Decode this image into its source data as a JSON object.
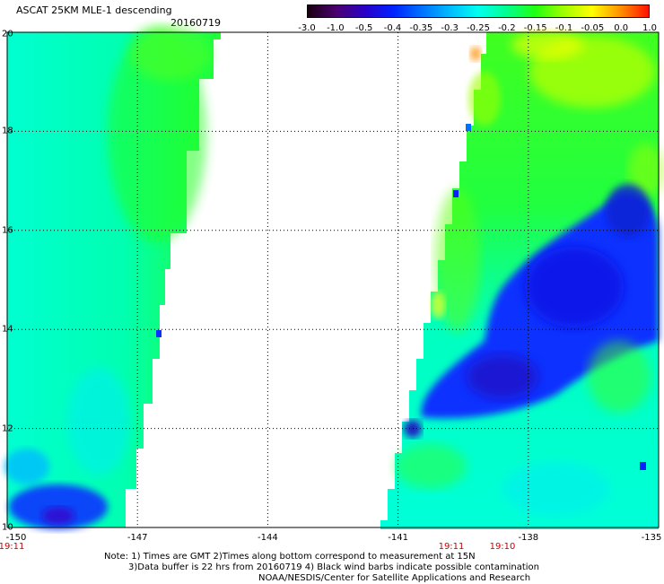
{
  "header": {
    "title": "ASCAT 25KM MLE-1 descending",
    "date": "20160719"
  },
  "colorbar": {
    "ticks": [
      "-3.0",
      "-1.0",
      "-0.5",
      "-0.4",
      "-0.35",
      "-0.3",
      "-0.25",
      "-0.2",
      "-0.15",
      "-0.1",
      "-0.05",
      "0.0",
      "1.0"
    ],
    "colors": [
      "#1a0010",
      "#4b006e",
      "#2a00c8",
      "#0022ff",
      "#0070ff",
      "#00bbff",
      "#00ffee",
      "#00ff90",
      "#20ff10",
      "#a0ff00",
      "#ffff00",
      "#ff9000",
      "#ff1000"
    ]
  },
  "axes": {
    "y_labels": [
      "20",
      "18",
      "16",
      "14",
      "12",
      "10"
    ],
    "x_labels": [
      "-150",
      "-147",
      "-144",
      "-141",
      "-138",
      "-135"
    ]
  },
  "times": {
    "left": "19:11",
    "mid1": "19:11",
    "mid2": "19:10"
  },
  "notes": {
    "line1": "Note: 1) Times are GMT 2)Times along bottom correspond to measurement at 15N",
    "line2": "3)Data buffer is 22 hrs from 20160719 4) Black wind barbs indicate possible contamination",
    "line3": "NOAA/NESDIS/Center for Satellite Applications and Research"
  },
  "map_data": {
    "lon_range": [
      -150,
      -135
    ],
    "lat_range": [
      10,
      20
    ],
    "grid_lons": [
      -147,
      -144,
      -141,
      -138
    ],
    "grid_lats": [
      12,
      14,
      16,
      18
    ],
    "swaths": [
      {
        "name": "west",
        "west_edge_lon": -150,
        "east_edge_top_lon": -145.9,
        "east_edge_bottom_lon": -146.8
      },
      {
        "name": "east",
        "west_edge_top_lon": -139.5,
        "west_edge_bottom_lon": -141.3,
        "east_edge_lon": -135
      }
    ]
  }
}
